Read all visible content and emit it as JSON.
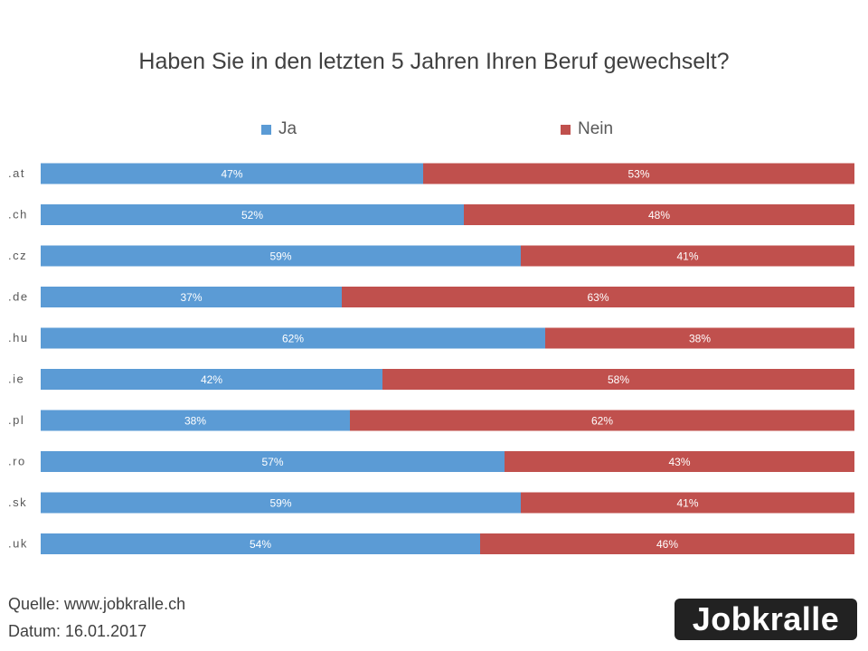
{
  "chart_data": {
    "type": "bar",
    "orientation": "horizontal",
    "stacked": "100%",
    "title": "Haben Sie in den letzten 5 Jahren Ihren Beruf gewechselt?",
    "categories": [
      ".at",
      ".ch",
      ".cz",
      ".de",
      ".hu",
      ".ie",
      ".pl",
      ".ro",
      ".sk",
      ".uk"
    ],
    "series": [
      {
        "name": "Ja",
        "color": "#5B9BD5",
        "values": [
          47,
          52,
          59,
          37,
          62,
          42,
          38,
          57,
          59,
          54
        ]
      },
      {
        "name": "Nein",
        "color": "#C0504D",
        "values": [
          53,
          48,
          41,
          63,
          38,
          58,
          62,
          43,
          41,
          46
        ]
      }
    ],
    "value_suffix": "%",
    "xlim": [
      0,
      100
    ],
    "legend_position": "top",
    "grid": false
  },
  "footer": {
    "source": "Quelle: www.jobkralle.ch",
    "date": "Datum: 16.01.2017"
  },
  "logo": {
    "text": "Jobkralle"
  }
}
